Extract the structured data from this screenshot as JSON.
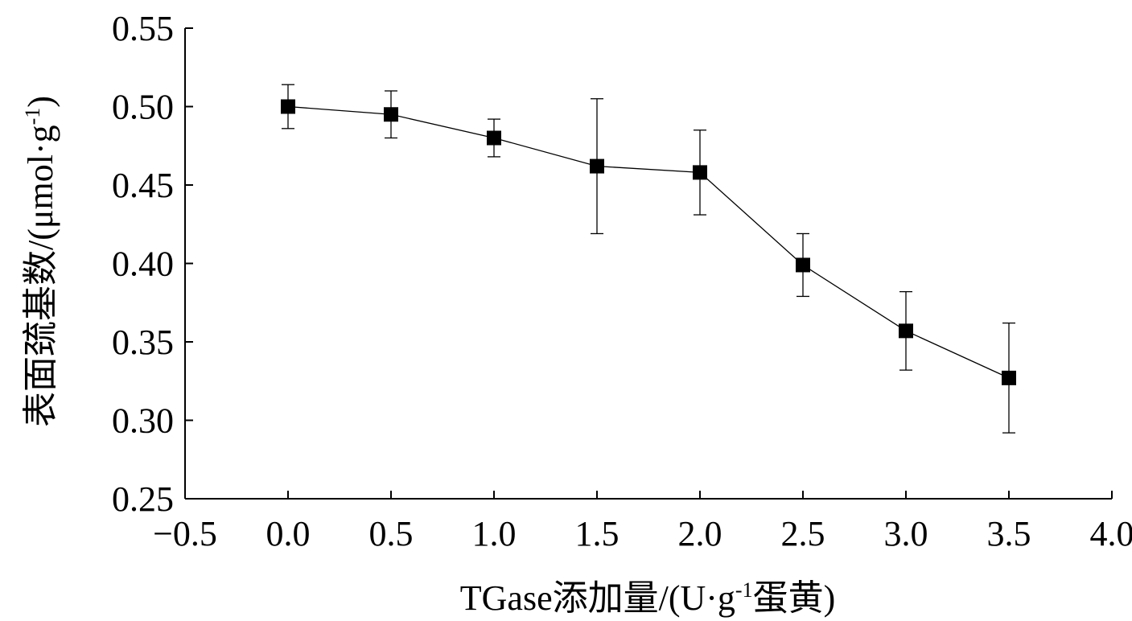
{
  "chart_data": {
    "type": "line",
    "marker": "square",
    "error_bars": true,
    "x": [
      0.0,
      0.5,
      1.0,
      1.5,
      2.0,
      2.5,
      3.0,
      3.5
    ],
    "series": [
      {
        "values": [
          0.5,
          0.495,
          0.48,
          0.462,
          0.458,
          0.399,
          0.357,
          0.327
        ],
        "errors": [
          0.014,
          0.015,
          0.012,
          0.043,
          0.027,
          0.02,
          0.025,
          0.035
        ]
      }
    ],
    "xlim": [
      -0.5,
      4.0
    ],
    "ylim": [
      0.25,
      0.55
    ],
    "xticks": [
      "−0.5",
      "0.0",
      "0.5",
      "1.0",
      "1.5",
      "2.0",
      "2.5",
      "3.0",
      "3.5",
      "4.0"
    ],
    "yticks": [
      "0.25",
      "0.30",
      "0.35",
      "0.40",
      "0.45",
      "0.50",
      "0.55"
    ],
    "xlabel": {
      "pre": "TGase添加量/(U·g",
      "sup": "-1",
      "post": "蛋黄)"
    },
    "ylabel": {
      "pre": "表面巯基数/(μmol·g",
      "sup": "-1",
      "post": ")"
    },
    "grid": false,
    "colors": {
      "line": "#000000",
      "marker": "#000000",
      "axis": "#000000"
    }
  }
}
